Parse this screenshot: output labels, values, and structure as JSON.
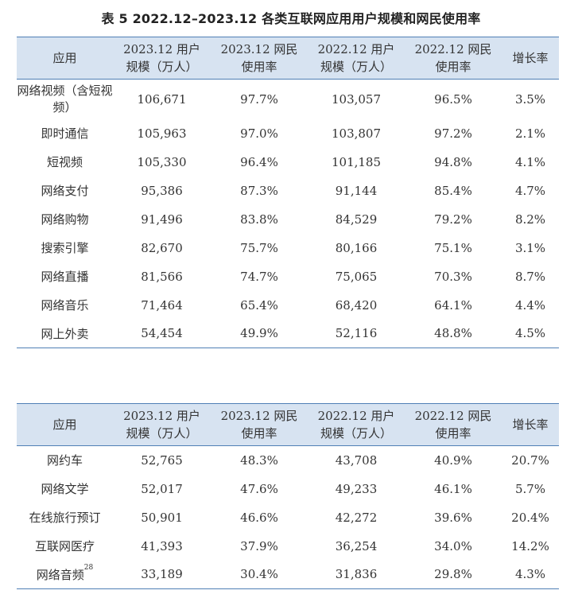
{
  "title": "表 5  2022.12–2023.12 各类互联网应用用户规模和网民使用率",
  "headers": {
    "app": "应用",
    "users_2023_l1": "2023.12 用户",
    "users_2023_l2": "规模（万人）",
    "rate_2023_l1": "2023.12 网民",
    "rate_2023_l2": "使用率",
    "users_2022_l1": "2022.12 用户",
    "users_2022_l2": "规模（万人）",
    "rate_2022_l1": "2022.12 网民",
    "rate_2022_l2": "使用率",
    "growth": "增长率"
  },
  "table1": {
    "rows": [
      {
        "app": "网络视频（含短视频）",
        "users_2023": "106,671",
        "rate_2023": "97.7%",
        "users_2022": "103,057",
        "rate_2022": "96.5%",
        "growth": "3.5%"
      },
      {
        "app": "即时通信",
        "users_2023": "105,963",
        "rate_2023": "97.0%",
        "users_2022": "103,807",
        "rate_2022": "97.2%",
        "growth": "2.1%"
      },
      {
        "app": "短视频",
        "users_2023": "105,330",
        "rate_2023": "96.4%",
        "users_2022": "101,185",
        "rate_2022": "94.8%",
        "growth": "4.1%"
      },
      {
        "app": "网络支付",
        "users_2023": "95,386",
        "rate_2023": "87.3%",
        "users_2022": "91,144",
        "rate_2022": "85.4%",
        "growth": "4.7%"
      },
      {
        "app": "网络购物",
        "users_2023": "91,496",
        "rate_2023": "83.8%",
        "users_2022": "84,529",
        "rate_2022": "79.2%",
        "growth": "8.2%"
      },
      {
        "app": "搜索引擎",
        "users_2023": "82,670",
        "rate_2023": "75.7%",
        "users_2022": "80,166",
        "rate_2022": "75.1%",
        "growth": "3.1%"
      },
      {
        "app": "网络直播",
        "users_2023": "81,566",
        "rate_2023": "74.7%",
        "users_2022": "75,065",
        "rate_2022": "70.3%",
        "growth": "8.7%"
      },
      {
        "app": "网络音乐",
        "users_2023": "71,464",
        "rate_2023": "65.4%",
        "users_2022": "68,420",
        "rate_2022": "64.1%",
        "growth": "4.4%"
      },
      {
        "app": "网上外卖",
        "users_2023": "54,454",
        "rate_2023": "49.9%",
        "users_2022": "52,116",
        "rate_2022": "48.8%",
        "growth": "4.5%"
      }
    ]
  },
  "table2": {
    "rows": [
      {
        "app": "网约车",
        "users_2023": "52,765",
        "rate_2023": "48.3%",
        "users_2022": "43,708",
        "rate_2022": "40.9%",
        "growth": "20.7%"
      },
      {
        "app": "网络文学",
        "users_2023": "52,017",
        "rate_2023": "47.6%",
        "users_2022": "49,233",
        "rate_2022": "46.1%",
        "growth": "5.7%"
      },
      {
        "app": "在线旅行预订",
        "users_2023": "50,901",
        "rate_2023": "46.6%",
        "users_2022": "42,272",
        "rate_2022": "39.6%",
        "growth": "20.4%"
      },
      {
        "app": "互联网医疗",
        "users_2023": "41,393",
        "rate_2023": "37.9%",
        "users_2022": "36,254",
        "rate_2022": "34.0%",
        "growth": "14.2%"
      },
      {
        "app": "网络音频",
        "footnote": "28",
        "users_2023": "33,189",
        "rate_2023": "30.4%",
        "users_2022": "31,836",
        "rate_2022": "29.8%",
        "growth": "4.3%"
      }
    ]
  },
  "colors": {
    "header_bg": "#d7e3f1",
    "rule": "#4f7fb5",
    "text": "#333333"
  }
}
